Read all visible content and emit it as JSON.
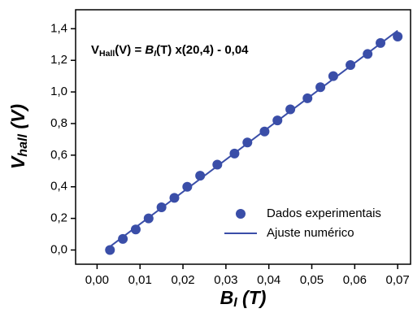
{
  "chart_data": {
    "type": "scatter",
    "annotation": {
      "v": "V",
      "v_sub": "Hall",
      "mid": "(V) = ",
      "b": "B",
      "b_sub": "I",
      "rest": "(T) x(20,4) - 0,04"
    },
    "x_label": {
      "main": "B",
      "sub": "I",
      "unit": " (T)"
    },
    "y_label": {
      "main": "V",
      "sub": "hall",
      "unit": " (V)"
    },
    "xlim": [
      -0.005,
      0.073
    ],
    "ylim": [
      -0.09,
      1.52
    ],
    "xticks": [
      {
        "value": 0,
        "label": "0,00"
      },
      {
        "value": 0.01,
        "label": "0,01"
      },
      {
        "value": 0.02,
        "label": "0,02"
      },
      {
        "value": 0.03,
        "label": "0,03"
      },
      {
        "value": 0.04,
        "label": "0,04"
      },
      {
        "value": 0.05,
        "label": "0,05"
      },
      {
        "value": 0.06,
        "label": "0,06"
      },
      {
        "value": 0.07,
        "label": "0,07"
      }
    ],
    "yticks": [
      {
        "value": 0,
        "label": "0,0"
      },
      {
        "value": 0.2,
        "label": "0,2"
      },
      {
        "value": 0.4,
        "label": "0,4"
      },
      {
        "value": 0.6,
        "label": "0,6"
      },
      {
        "value": 0.8,
        "label": "0,8"
      },
      {
        "value": 1.0,
        "label": "1,0"
      },
      {
        "value": 1.2,
        "label": "1,2"
      },
      {
        "value": 1.4,
        "label": "1,4"
      }
    ],
    "legend": "lower right",
    "series": [
      {
        "name": "Dados experimentais",
        "mode": "markers",
        "color": "#3a4ea8",
        "x": [
          0.003,
          0.006,
          0.009,
          0.012,
          0.015,
          0.018,
          0.021,
          0.024,
          0.028,
          0.032,
          0.035,
          0.039,
          0.042,
          0.045,
          0.049,
          0.052,
          0.055,
          0.059,
          0.063,
          0.066,
          0.07
        ],
        "values": [
          0.0,
          0.07,
          0.13,
          0.2,
          0.27,
          0.33,
          0.4,
          0.47,
          0.54,
          0.61,
          0.68,
          0.75,
          0.82,
          0.89,
          0.96,
          1.03,
          1.1,
          1.17,
          1.24,
          1.31,
          1.35
        ]
      },
      {
        "name": "Ajuste numérico",
        "mode": "line",
        "color": "#3a4ea8",
        "x": [
          0.002,
          0.07
        ],
        "values": [
          0.0008,
          1.388
        ]
      }
    ]
  }
}
